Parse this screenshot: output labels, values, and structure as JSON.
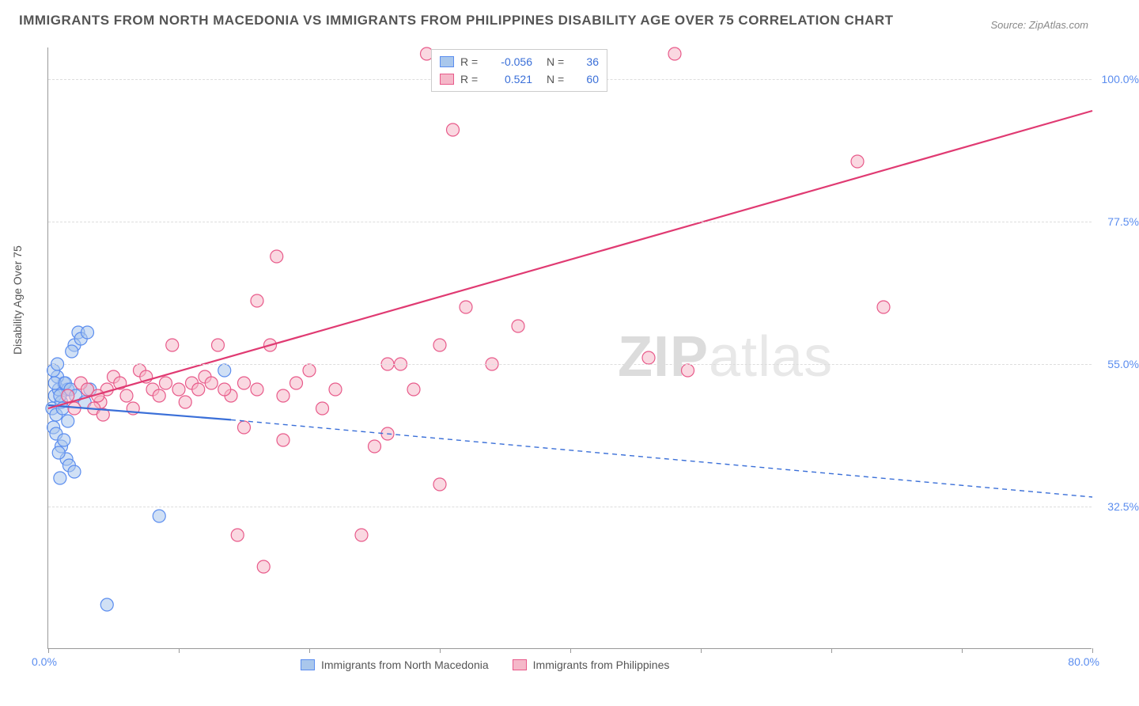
{
  "title": "IMMIGRANTS FROM NORTH MACEDONIA VS IMMIGRANTS FROM PHILIPPINES DISABILITY AGE OVER 75 CORRELATION CHART",
  "source": "Source: ZipAtlas.com",
  "y_axis_title": "Disability Age Over 75",
  "watermark_prefix": "ZIP",
  "watermark_suffix": "atlas",
  "chart": {
    "type": "scatter",
    "background_color": "#ffffff",
    "grid_color": "#dddddd",
    "axis_color": "#999999",
    "xlim": [
      0,
      80
    ],
    "ylim": [
      10,
      105
    ],
    "x_ticks": [
      0,
      10,
      20,
      30,
      40,
      50,
      60,
      70,
      80
    ],
    "y_gridlines": [
      32.5,
      55.0,
      77.5,
      100.0
    ],
    "y_tick_labels": [
      "32.5%",
      "55.0%",
      "77.5%",
      "100.0%"
    ],
    "x_min_label": "0.0%",
    "x_max_label": "80.0%",
    "marker_radius": 8,
    "marker_stroke_width": 1.2,
    "line_width": 2.2,
    "series": [
      {
        "name": "Immigrants from North Macedonia",
        "fill": "#a9c7ec",
        "stroke": "#5b8def",
        "fill_opacity": 0.55,
        "R": "-0.056",
        "N": "36",
        "regression": {
          "solid_x": [
            0,
            14
          ],
          "solid_y": [
            48.5,
            46.2
          ],
          "dashed_x": [
            14,
            80
          ],
          "dashed_y": [
            46.2,
            34.0
          ],
          "color": "#3a6fd8"
        },
        "points": [
          [
            0.3,
            48
          ],
          [
            0.5,
            50
          ],
          [
            0.8,
            51
          ],
          [
            1.0,
            49
          ],
          [
            0.6,
            47
          ],
          [
            1.2,
            52
          ],
          [
            0.4,
            45
          ],
          [
            0.7,
            53
          ],
          [
            1.5,
            51
          ],
          [
            0.9,
            50
          ],
          [
            1.1,
            48
          ],
          [
            0.5,
            52
          ],
          [
            2.0,
            58
          ],
          [
            2.3,
            60
          ],
          [
            1.8,
            57
          ],
          [
            2.5,
            59
          ],
          [
            3.0,
            60
          ],
          [
            0.6,
            44
          ],
          [
            1.0,
            42
          ],
          [
            1.4,
            40
          ],
          [
            1.2,
            43
          ],
          [
            0.8,
            41
          ],
          [
            1.6,
            39
          ],
          [
            2.0,
            38
          ],
          [
            0.9,
            37
          ],
          [
            1.3,
            52
          ],
          [
            1.7,
            51
          ],
          [
            2.1,
            50
          ],
          [
            2.8,
            49
          ],
          [
            3.2,
            51
          ],
          [
            0.4,
            54
          ],
          [
            0.7,
            55
          ],
          [
            8.5,
            31
          ],
          [
            4.5,
            17
          ],
          [
            13.5,
            54
          ],
          [
            1.5,
            46
          ]
        ]
      },
      {
        "name": "Immigrants from Philippines",
        "fill": "#f5b8c9",
        "stroke": "#e85a8a",
        "fill_opacity": 0.55,
        "R": "0.521",
        "N": "60",
        "regression": {
          "solid_x": [
            0,
            80
          ],
          "solid_y": [
            48.0,
            95.0
          ],
          "color": "#e03a72"
        },
        "points": [
          [
            1.5,
            50
          ],
          [
            2.5,
            52
          ],
          [
            3.0,
            51
          ],
          [
            4.0,
            49
          ],
          [
            3.5,
            48
          ],
          [
            5.0,
            53
          ],
          [
            4.5,
            51
          ],
          [
            6.0,
            50
          ],
          [
            5.5,
            52
          ],
          [
            7.0,
            54
          ],
          [
            6.5,
            48
          ],
          [
            8.0,
            51
          ],
          [
            7.5,
            53
          ],
          [
            9.0,
            52
          ],
          [
            8.5,
            50
          ],
          [
            10.0,
            51
          ],
          [
            9.5,
            58
          ],
          [
            11.0,
            52
          ],
          [
            10.5,
            49
          ],
          [
            12.0,
            53
          ],
          [
            11.5,
            51
          ],
          [
            13.0,
            58
          ],
          [
            12.5,
            52
          ],
          [
            14.0,
            50
          ],
          [
            13.5,
            51
          ],
          [
            15.0,
            52
          ],
          [
            16.0,
            51
          ],
          [
            17.0,
            58
          ],
          [
            18.0,
            50
          ],
          [
            19.0,
            52
          ],
          [
            20.0,
            54
          ],
          [
            22.0,
            51
          ],
          [
            16.0,
            65
          ],
          [
            17.5,
            72
          ],
          [
            15.0,
            45
          ],
          [
            18.0,
            43
          ],
          [
            21.0,
            48
          ],
          [
            25.0,
            42
          ],
          [
            26.0,
            55
          ],
          [
            28.0,
            51
          ],
          [
            30.0,
            58
          ],
          [
            32.0,
            64
          ],
          [
            34.0,
            55
          ],
          [
            36.0,
            61
          ],
          [
            29.0,
            104
          ],
          [
            31.0,
            92
          ],
          [
            27.0,
            55
          ],
          [
            26.0,
            44
          ],
          [
            30.0,
            36
          ],
          [
            24.0,
            28
          ],
          [
            14.5,
            28
          ],
          [
            16.5,
            23
          ],
          [
            46.0,
            56
          ],
          [
            48.0,
            104
          ],
          [
            49.0,
            54
          ],
          [
            62.0,
            87
          ],
          [
            64.0,
            64
          ],
          [
            2.0,
            48
          ],
          [
            3.8,
            50
          ],
          [
            4.2,
            47
          ]
        ]
      }
    ]
  },
  "colors": {
    "title_text": "#555555",
    "source_text": "#888888",
    "tick_text": "#5b8def",
    "value_text": "#3a6fd8"
  }
}
